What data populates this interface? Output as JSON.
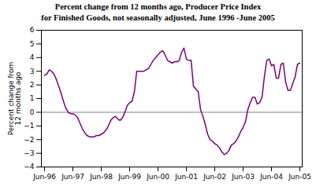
{
  "chart_data": {
    "type": "line",
    "title": "Percent change from 12 months ago, Producer Price Index",
    "subtitle": "for Finished Goods, not seasonally adjusted, June 1996 -June 2005",
    "ylabel": "Percent change from\n12 months ago",
    "color": "#7B007B",
    "grid": false,
    "ylim": [
      -4,
      6
    ],
    "yticks": [
      -4,
      -3,
      -2,
      -1,
      0,
      1,
      2,
      3,
      4,
      5,
      6
    ],
    "categories": [
      "Jun-96",
      null,
      null,
      null,
      null,
      null,
      null,
      null,
      null,
      null,
      null,
      null,
      "Jun-97",
      null,
      null,
      null,
      null,
      null,
      null,
      null,
      null,
      null,
      null,
      null,
      "Jun-98",
      null,
      null,
      null,
      null,
      null,
      null,
      null,
      null,
      null,
      null,
      null,
      "Jun-99",
      null,
      null,
      null,
      null,
      null,
      null,
      null,
      null,
      null,
      null,
      null,
      "Jun-00",
      null,
      null,
      null,
      null,
      null,
      null,
      null,
      null,
      null,
      null,
      null,
      "Jun-01",
      null,
      null,
      null,
      null,
      null,
      null,
      null,
      null,
      null,
      null,
      null,
      "Jun-02",
      null,
      null,
      null,
      null,
      null,
      null,
      null,
      null,
      null,
      null,
      null,
      "Jun-03",
      null,
      null,
      null,
      null,
      null,
      null,
      null,
      null,
      null,
      null,
      null,
      "Jun-04",
      null,
      null,
      null,
      null,
      null,
      null,
      null,
      null,
      null,
      null,
      null,
      "Jun-05"
    ],
    "values": [
      2.7,
      2.8,
      3.1,
      3.0,
      2.8,
      2.4,
      1.9,
      1.4,
      0.8,
      0.3,
      0.0,
      -0.1,
      -0.1,
      -0.2,
      -0.4,
      -0.8,
      -1.2,
      -1.5,
      -1.7,
      -1.8,
      -1.8,
      -1.8,
      -1.7,
      -1.7,
      -1.6,
      -1.5,
      -1.3,
      -1.0,
      -0.6,
      -0.4,
      -0.3,
      -0.5,
      -0.6,
      -0.4,
      0.0,
      0.5,
      0.7,
      0.8,
      1.5,
      3.0,
      3.0,
      3.0,
      3.0,
      3.1,
      3.2,
      3.5,
      3.8,
      4.0,
      4.2,
      4.4,
      4.5,
      4.2,
      3.8,
      3.7,
      3.6,
      3.7,
      3.7,
      3.8,
      4.4,
      4.7,
      3.9,
      3.8,
      3.8,
      1.9,
      1.7,
      1.5,
      0.2,
      -0.3,
      -0.9,
      -1.6,
      -2.0,
      -2.1,
      -2.3,
      -2.4,
      -2.6,
      -2.9,
      -3.1,
      -3.0,
      -2.8,
      -2.4,
      -2.3,
      -2.1,
      -1.8,
      -1.4,
      -1.1,
      -0.7,
      0.2,
      0.7,
      1.1,
      1.1,
      0.6,
      0.7,
      1.1,
      2.6,
      3.8,
      3.9,
      3.4,
      3.5,
      2.5,
      2.5,
      3.5,
      3.6,
      2.2,
      1.6,
      1.6,
      2.1,
      2.6,
      3.5,
      3.6
    ]
  }
}
